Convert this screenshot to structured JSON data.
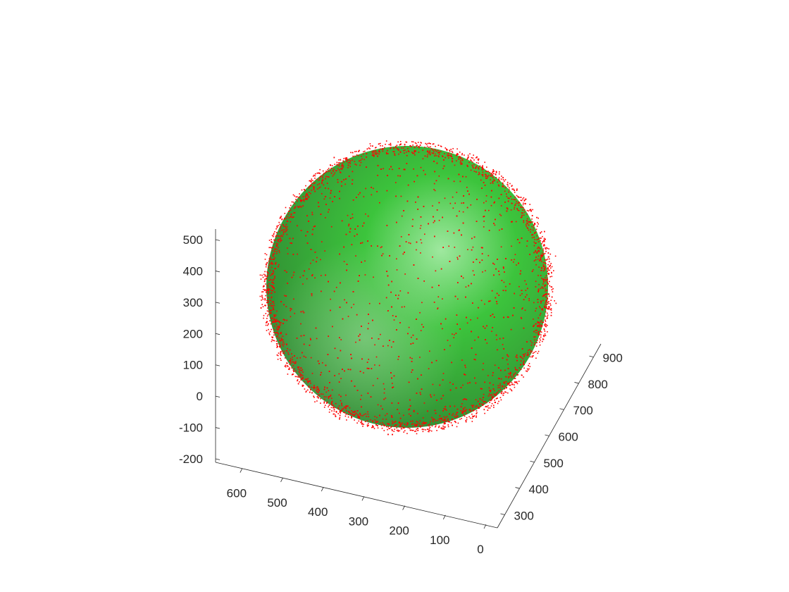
{
  "chart_data": {
    "type": "scatter",
    "title": "",
    "xlabel": "",
    "ylabel": "",
    "zlabel": "",
    "grid": false,
    "legend": "none",
    "colors": {
      "surface_dark": "#2e7d32",
      "surface_mid": "#3cc43c",
      "surface_highlight": "#9fe89f",
      "points": "#ff0000",
      "axis": "#262626"
    },
    "surface": {
      "shape": "sphere",
      "center": [
        300,
        600,
        175
      ],
      "radius": 320
    },
    "points": {
      "distribution": "noisy sphere shell",
      "count_approx": 10000
    },
    "axes": {
      "x": {
        "range": [
          0,
          650
        ],
        "ticks": [
          {
            "value": 0,
            "label": "0"
          },
          {
            "value": 100,
            "label": "100"
          },
          {
            "value": 200,
            "label": "200"
          },
          {
            "value": 300,
            "label": "300"
          },
          {
            "value": 400,
            "label": "400"
          },
          {
            "value": 500,
            "label": "500"
          },
          {
            "value": 600,
            "label": "600"
          }
        ]
      },
      "y": {
        "range": [
          250,
          950
        ],
        "ticks": [
          {
            "value": 300,
            "label": "300"
          },
          {
            "value": 400,
            "label": "400"
          },
          {
            "value": 500,
            "label": "500"
          },
          {
            "value": 600,
            "label": "600"
          },
          {
            "value": 700,
            "label": "700"
          },
          {
            "value": 800,
            "label": "800"
          },
          {
            "value": 900,
            "label": "900"
          }
        ]
      },
      "z": {
        "range": [
          -200,
          550
        ],
        "ticks": [
          {
            "value": -200,
            "label": "-200"
          },
          {
            "value": -100,
            "label": "-100"
          },
          {
            "value": 0,
            "label": "0"
          },
          {
            "value": 100,
            "label": "100"
          },
          {
            "value": 200,
            "label": "200"
          },
          {
            "value": 300,
            "label": "300"
          },
          {
            "value": 400,
            "label": "400"
          },
          {
            "value": 500,
            "label": "500"
          }
        ]
      }
    }
  }
}
